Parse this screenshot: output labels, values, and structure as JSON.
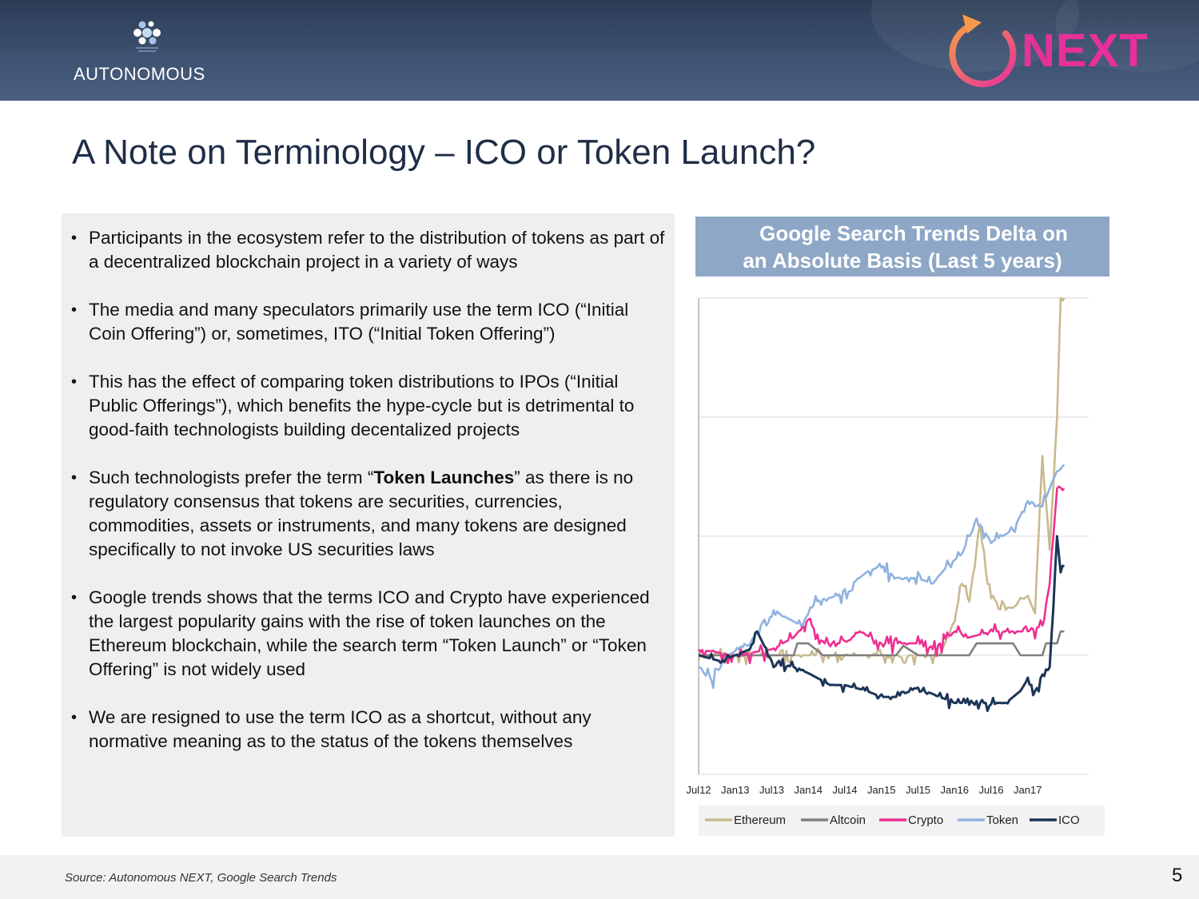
{
  "header": {
    "brand": "AUTONOMOUS",
    "next_logo": "NEXT",
    "icons": [
      "autonomous-logo-icon",
      "next-circular-arrow-icon"
    ],
    "accent": "#e8309a"
  },
  "slide": {
    "title": "A Note on Terminology – ICO or Token Launch?",
    "bullets": [
      "Participants in the ecosystem refer to the distribution of tokens as part of a decentralized blockchain project in a variety of ways",
      "The media and many speculators primarily use the term ICO (“Initial Coin Offering”) or, sometimes, ITO (“Initial Token Offering”)",
      "This has the effect of comparing token distributions to IPOs (“Initial Public Offerings”), which benefits the hype-cycle but is detrimental to good-faith technologists building decentalized projects",
      "We are resigned to use the term ICO as a shortcut, without any normative meaning as to the status of the tokens themselves"
    ],
    "bullet4": {
      "before": "Such technologists prefer the term “",
      "bold": "Token Launches",
      "after": "” as there is no regulatory consensus that tokens are securities, currencies, commodities, assets or instruments, and many tokens are designed specifically to not invoke US securities laws"
    },
    "bullet5": "Google trends shows that the terms ICO and Crypto have experienced the largest popularity gains with the rise of token launches on the Ethereum blockchain, while the search term “Token Launch” or “Token Offering” is not widely used",
    "source": "Source: Autonomous NEXT, Google Search Trends",
    "page_number": "5"
  },
  "chart_title": {
    "line1": "Google Search Trends Delta on",
    "line2": "an Absolute Basis (Last 5 years)"
  },
  "chart_data": {
    "type": "line",
    "title": "Google Search Trends Delta on an Absolute Basis (Last 5 years)",
    "xlabel": "",
    "ylabel": "",
    "x_ticks": [
      "Jul12",
      "Jan13",
      "Jul13",
      "Jan14",
      "Jul14",
      "Jan15",
      "Jul15",
      "Jan16",
      "Jul16",
      "Jan17"
    ],
    "x_range": [
      "2012-07",
      "2017-10"
    ],
    "ylim": [
      -100,
      300
    ],
    "y_gridlines": [
      0,
      100,
      200,
      300
    ],
    "y_tick_labels_shown": false,
    "legend_position": "bottom",
    "series": [
      {
        "name": "Ethereum",
        "color": "#c8b98f",
        "points": [
          [
            2012.5,
            0
          ],
          [
            2014.0,
            0
          ],
          [
            2014.5,
            0
          ],
          [
            2015.0,
            0
          ],
          [
            2015.4,
            0
          ],
          [
            2015.8,
            0
          ],
          [
            2015.9,
            15
          ],
          [
            2016.0,
            30
          ],
          [
            2016.1,
            60
          ],
          [
            2016.2,
            45
          ],
          [
            2016.3,
            90
          ],
          [
            2016.35,
            110
          ],
          [
            2016.45,
            60
          ],
          [
            2016.6,
            40
          ],
          [
            2016.8,
            40
          ],
          [
            2017.0,
            50
          ],
          [
            2017.1,
            35
          ],
          [
            2017.2,
            170
          ],
          [
            2017.3,
            90
          ],
          [
            2017.4,
            200
          ],
          [
            2017.45,
            300
          ],
          [
            2017.5,
            300
          ]
        ]
      },
      {
        "name": "Altcoin",
        "color": "#808080",
        "points": [
          [
            2012.5,
            0
          ],
          [
            2013.8,
            0
          ],
          [
            2013.85,
            10
          ],
          [
            2014.0,
            10
          ],
          [
            2014.2,
            0
          ],
          [
            2015.2,
            0
          ],
          [
            2015.3,
            8
          ],
          [
            2015.5,
            0
          ],
          [
            2016.2,
            0
          ],
          [
            2016.3,
            10
          ],
          [
            2016.8,
            10
          ],
          [
            2016.9,
            0
          ],
          [
            2017.2,
            0
          ],
          [
            2017.25,
            10
          ],
          [
            2017.4,
            10
          ],
          [
            2017.45,
            20
          ],
          [
            2017.5,
            20
          ]
        ]
      },
      {
        "name": "Crypto",
        "color": "#ef2f91",
        "points": [
          [
            2012.5,
            5
          ],
          [
            2013.0,
            0
          ],
          [
            2013.5,
            5
          ],
          [
            2013.8,
            15
          ],
          [
            2014.0,
            30
          ],
          [
            2014.2,
            10
          ],
          [
            2014.5,
            10
          ],
          [
            2014.7,
            20
          ],
          [
            2015.0,
            10
          ],
          [
            2015.3,
            10
          ],
          [
            2015.5,
            10
          ],
          [
            2015.7,
            5
          ],
          [
            2016.0,
            20
          ],
          [
            2016.2,
            15
          ],
          [
            2016.5,
            20
          ],
          [
            2016.8,
            20
          ],
          [
            2017.0,
            20
          ],
          [
            2017.2,
            25
          ],
          [
            2017.3,
            60
          ],
          [
            2017.35,
            100
          ],
          [
            2017.4,
            140
          ],
          [
            2017.45,
            140
          ],
          [
            2017.5,
            140
          ]
        ]
      },
      {
        "name": "Token",
        "color": "#8fb2e0",
        "points": [
          [
            2012.5,
            -10
          ],
          [
            2012.7,
            -20
          ],
          [
            2012.9,
            0
          ],
          [
            2013.2,
            10
          ],
          [
            2013.4,
            30
          ],
          [
            2013.6,
            35
          ],
          [
            2013.9,
            25
          ],
          [
            2014.1,
            45
          ],
          [
            2014.4,
            50
          ],
          [
            2014.6,
            60
          ],
          [
            2014.8,
            70
          ],
          [
            2015.0,
            75
          ],
          [
            2015.2,
            65
          ],
          [
            2015.5,
            65
          ],
          [
            2015.7,
            60
          ],
          [
            2015.9,
            75
          ],
          [
            2016.1,
            85
          ],
          [
            2016.3,
            115
          ],
          [
            2016.5,
            95
          ],
          [
            2016.8,
            105
          ],
          [
            2017.0,
            130
          ],
          [
            2017.2,
            125
          ],
          [
            2017.3,
            140
          ],
          [
            2017.4,
            155
          ],
          [
            2017.5,
            160
          ]
        ]
      },
      {
        "name": "ICO",
        "color": "#1b3557",
        "points": [
          [
            2012.5,
            0
          ],
          [
            2012.8,
            -5
          ],
          [
            2013.0,
            0
          ],
          [
            2013.2,
            5
          ],
          [
            2013.3,
            20
          ],
          [
            2013.5,
            -5
          ],
          [
            2013.8,
            -10
          ],
          [
            2014.0,
            -15
          ],
          [
            2014.3,
            -25
          ],
          [
            2014.5,
            -25
          ],
          [
            2014.8,
            -30
          ],
          [
            2015.0,
            -35
          ],
          [
            2015.2,
            -35
          ],
          [
            2015.4,
            -30
          ],
          [
            2015.6,
            -30
          ],
          [
            2015.8,
            -35
          ],
          [
            2016.0,
            -40
          ],
          [
            2016.2,
            -40
          ],
          [
            2016.5,
            -40
          ],
          [
            2016.7,
            -40
          ],
          [
            2016.9,
            -30
          ],
          [
            2017.0,
            -20
          ],
          [
            2017.1,
            -30
          ],
          [
            2017.2,
            -20
          ],
          [
            2017.3,
            -10
          ],
          [
            2017.35,
            40
          ],
          [
            2017.4,
            100
          ],
          [
            2017.45,
            75
          ],
          [
            2017.5,
            75
          ]
        ]
      }
    ]
  }
}
